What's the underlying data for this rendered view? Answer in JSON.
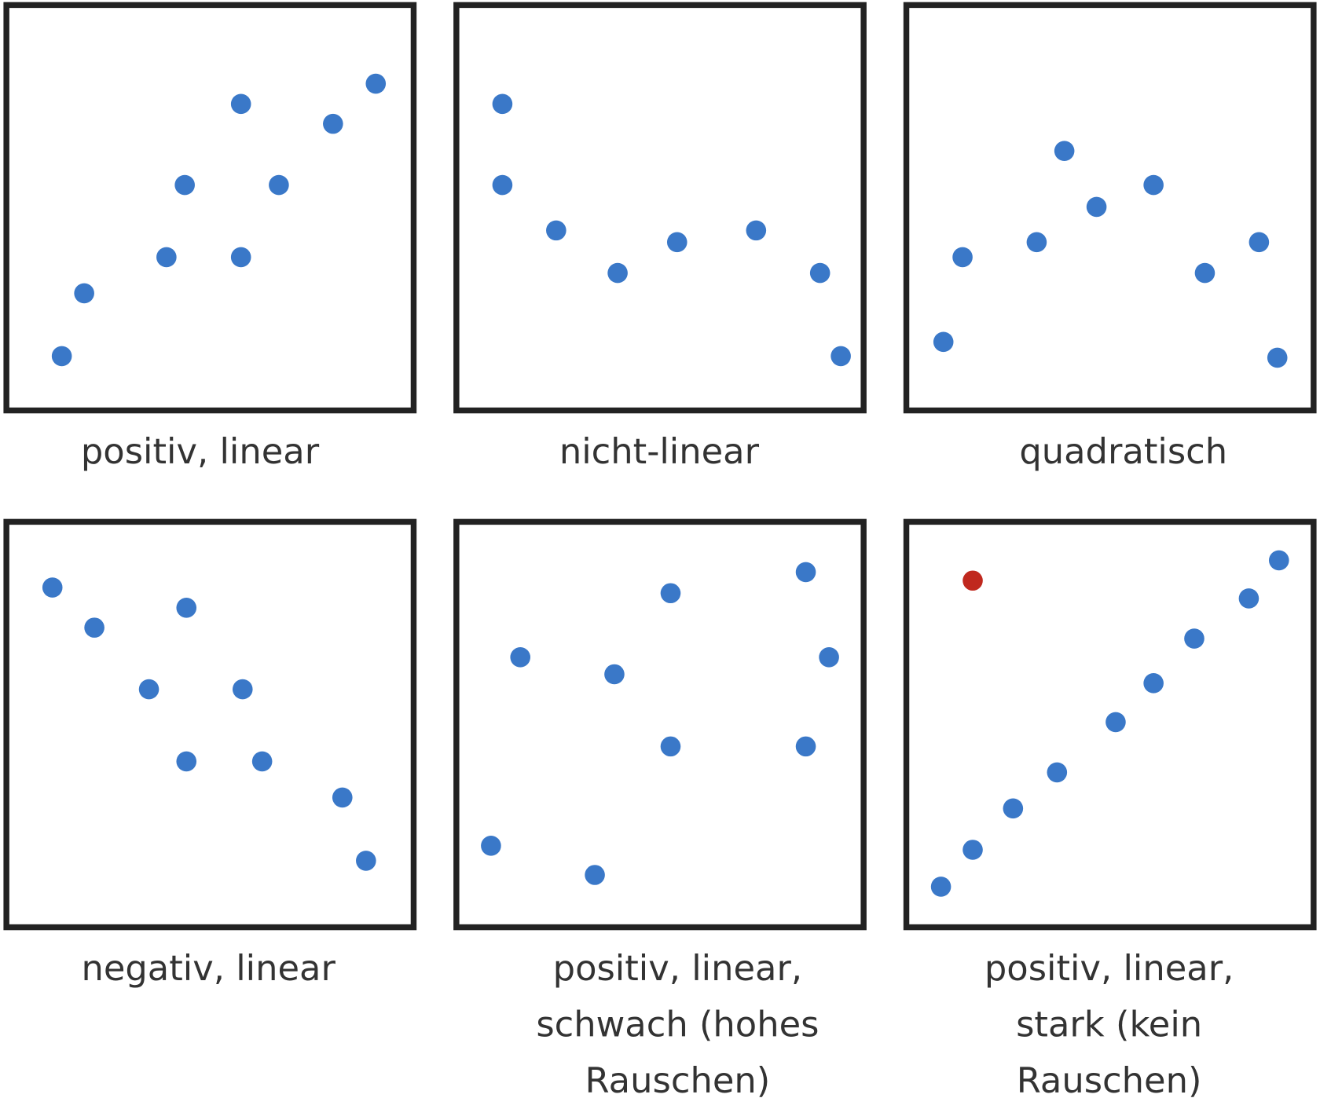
{
  "chart_data": [
    {
      "type": "scatter",
      "title_lines": [
        "positiv, linear"
      ],
      "xlim": [
        0,
        100
      ],
      "ylim": [
        0,
        100
      ],
      "series": [
        {
          "color": "#3a78c8",
          "x": [
            13.6,
            19.1,
            39.3,
            43.8,
            57.6,
            57.6,
            66.9,
            80.2,
            90.7
          ],
          "y": [
            13.4,
            28.9,
            37.8,
            55.6,
            37.8,
            75.6,
            55.6,
            70.7,
            80.6
          ]
        }
      ]
    },
    {
      "type": "scatter",
      "title_lines": [
        "nicht-linear"
      ],
      "xlim": [
        0,
        100
      ],
      "ylim": [
        0,
        100
      ],
      "series": [
        {
          "color": "#3a78c8",
          "x": [
            11.3,
            11.3,
            24.5,
            39.6,
            54.2,
            73.6,
            89.3,
            94.4
          ],
          "y": [
            75.6,
            55.6,
            44.4,
            33.9,
            41.5,
            44.4,
            33.9,
            13.4
          ]
        }
      ]
    },
    {
      "type": "scatter",
      "title_lines": [
        "quadratisch"
      ],
      "xlim": [
        0,
        100
      ],
      "ylim": [
        0,
        100
      ],
      "series": [
        {
          "color": "#3a78c8",
          "x": [
            9.1,
            13.8,
            32.0,
            38.8,
            46.7,
            60.7,
            73.3,
            86.6,
            91.1
          ],
          "y": [
            16.9,
            37.8,
            41.5,
            64.0,
            50.2,
            55.6,
            33.9,
            41.5,
            13.0
          ]
        }
      ]
    },
    {
      "type": "scatter",
      "title_lines": [
        "negativ, linear"
      ],
      "xlim": [
        0,
        100
      ],
      "ylim": [
        0,
        100
      ],
      "series": [
        {
          "color": "#3a78c8",
          "x": [
            11.3,
            21.6,
            44.2,
            35.0,
            58.0,
            44.2,
            62.8,
            82.5,
            88.3
          ],
          "y": [
            83.8,
            73.9,
            78.8,
            58.7,
            58.7,
            40.9,
            40.9,
            32.0,
            16.4
          ]
        }
      ]
    },
    {
      "type": "scatter",
      "title_lines": [
        "positiv, linear,",
        "schwach (hohes",
        "Rauschen)"
      ],
      "xlim": [
        0,
        100
      ],
      "ylim": [
        0,
        100
      ],
      "series": [
        {
          "color": "#3a78c8",
          "x": [
            8.5,
            15.7,
            34.0,
            38.8,
            52.6,
            52.6,
            85.8,
            91.5,
            85.8
          ],
          "y": [
            20.1,
            66.6,
            12.9,
            62.4,
            82.4,
            44.6,
            87.6,
            66.6,
            44.6
          ]
        }
      ]
    },
    {
      "type": "scatter",
      "title_lines": [
        "positiv, linear,",
        "stark (kein",
        "Rauschen)"
      ],
      "xlim": [
        0,
        100
      ],
      "ylim": [
        0,
        100
      ],
      "series": [
        {
          "color": "#3a78c8",
          "x": [
            8.5,
            16.3,
            26.2,
            37.0,
            51.4,
            60.7,
            70.7,
            84.1,
            91.5
          ],
          "y": [
            10.0,
            19.1,
            29.3,
            38.2,
            50.6,
            60.2,
            71.2,
            81.1,
            90.5
          ]
        },
        {
          "color": "#c0281e",
          "x": [
            16.3
          ],
          "y": [
            85.5
          ]
        }
      ]
    }
  ]
}
